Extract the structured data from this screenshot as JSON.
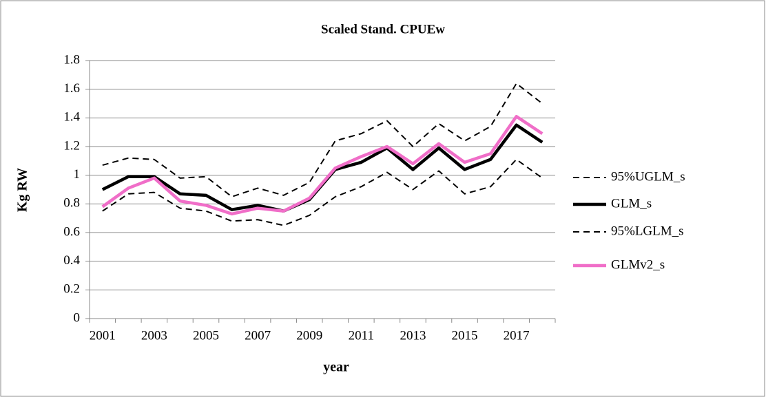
{
  "chart_data": {
    "type": "line",
    "title": "Scaled Stand. CPUEw",
    "x_label": "year",
    "y_label": "Kg RW",
    "categories": [
      "2001",
      null,
      "2003",
      null,
      "2005",
      null,
      "2007",
      null,
      "2009",
      null,
      "2011",
      null,
      "2013",
      null,
      "2015",
      null,
      "2017",
      null
    ],
    "series": [
      {
        "name": "95%UGLM_s",
        "color": "#000000",
        "dashed": true,
        "values": [
          1.07,
          1.12,
          1.11,
          0.98,
          0.99,
          0.85,
          0.91,
          0.86,
          0.95,
          1.24,
          1.29,
          1.38,
          1.2,
          1.36,
          1.24,
          1.34,
          1.64,
          1.5
        ]
      },
      {
        "name": "GLM_s",
        "color": "#000000",
        "dashed": false,
        "values": [
          0.9,
          0.99,
          0.99,
          0.87,
          0.86,
          0.76,
          0.79,
          0.75,
          0.83,
          1.04,
          1.09,
          1.19,
          1.04,
          1.19,
          1.04,
          1.11,
          1.35,
          1.23
        ]
      },
      {
        "name": "95%LGLM_s",
        "color": "#000000",
        "dashed": true,
        "values": [
          0.75,
          0.87,
          0.88,
          0.77,
          0.75,
          0.68,
          0.69,
          0.65,
          0.72,
          0.85,
          0.92,
          1.02,
          0.9,
          1.03,
          0.87,
          0.92,
          1.11,
          0.98
        ]
      },
      {
        "name": "GLMv2_s",
        "color": "#f06ec8",
        "dashed": false,
        "values": [
          0.78,
          0.91,
          0.98,
          0.82,
          0.79,
          0.73,
          0.77,
          0.75,
          0.84,
          1.05,
          1.13,
          1.2,
          1.08,
          1.22,
          1.09,
          1.15,
          1.41,
          1.29
        ]
      }
    ],
    "ylim": [
      0,
      1.8
    ],
    "yticks": [
      0,
      0.2,
      0.4,
      0.6,
      0.8,
      1,
      1.2,
      1.4,
      1.6,
      1.8
    ],
    "grid": true,
    "legend": "right"
  }
}
